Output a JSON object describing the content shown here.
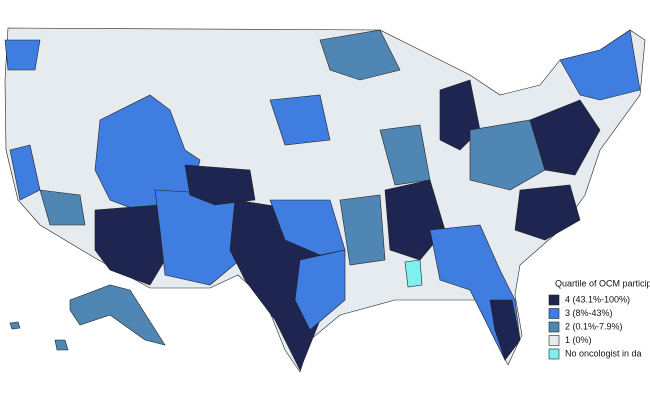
{
  "legend": {
    "title": "Quartile of OCM particip",
    "items": [
      {
        "label": "4 (43.1%-100%)",
        "color": "#1e2550"
      },
      {
        "label": "3 (8%-43%)",
        "color": "#3f7de0"
      },
      {
        "label": "2 (0.1%-7.9%)",
        "color": "#4f86b3"
      },
      {
        "label": "1 (0%)",
        "color": "#e6ebf0"
      },
      {
        "label": "No oncologist in da",
        "color": "#7ff0f0"
      }
    ]
  }
}
